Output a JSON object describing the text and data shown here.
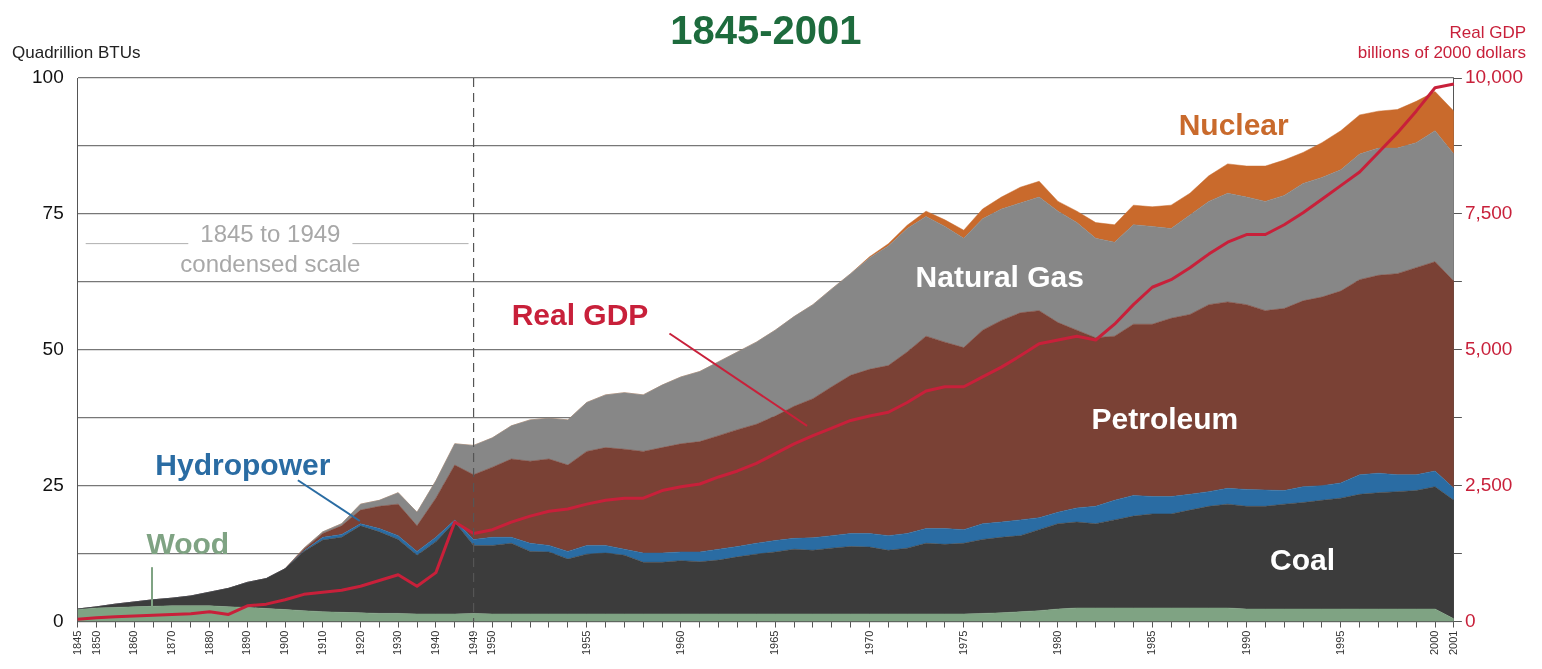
{
  "chart_data": {
    "type": "area",
    "title": "1845-2001",
    "ylabel": "Quadrillion BTUs",
    "y2label": "Real GDP\nbillions of 2000 dollars",
    "stacked": true,
    "grid": "y",
    "legend": false,
    "annotations": [
      "1845 to 1949\ncondensed scale"
    ],
    "categories": [
      "1845",
      "1850",
      null,
      "1860",
      null,
      "1870",
      null,
      "1880",
      null,
      "1890",
      null,
      "1900",
      null,
      "1910",
      null,
      "1920",
      null,
      "1930",
      null,
      "1940",
      null,
      "1949",
      "1950",
      null,
      null,
      null,
      null,
      "1955",
      null,
      null,
      null,
      null,
      "1960",
      null,
      null,
      null,
      null,
      "1965",
      null,
      null,
      null,
      null,
      "1970",
      null,
      null,
      null,
      null,
      "1975",
      null,
      null,
      null,
      null,
      "1980",
      null,
      null,
      null,
      null,
      "1985",
      null,
      null,
      null,
      null,
      "1990",
      null,
      null,
      null,
      null,
      "1995",
      null,
      null,
      null,
      null,
      "2000",
      "2001"
    ],
    "ylim": [
      0,
      100
    ],
    "yticks": [
      0,
      {
        "value": 12.5,
        "label": null
      },
      25,
      {
        "value": 37.5,
        "label": null
      },
      50,
      {
        "value": 62.5,
        "label": null
      },
      75,
      {
        "value": 87.5,
        "label": null
      },
      100
    ],
    "y2lim": [
      0,
      10000
    ],
    "y2ticks": [
      0,
      {
        "value": 1250,
        "label": null
      },
      {
        "value": 2500,
        "label": "2,500"
      },
      {
        "value": 3750,
        "label": null
      },
      {
        "value": 5000,
        "label": "5,000"
      },
      {
        "value": 6250,
        "label": null
      },
      {
        "value": 7500,
        "label": "7,500"
      },
      {
        "value": 8750,
        "label": null
      },
      {
        "value": 10000,
        "label": "10,000"
      }
    ],
    "ref_lines": [
      {
        "axis": "x",
        "value": "1949",
        "label": null,
        "color": "#555555",
        "line_style": "dashed"
      }
    ],
    "series": [
      {
        "name": "Wood",
        "color": "#7fa383",
        "values": [
          2.2,
          2.5,
          2.6,
          2.7,
          2.8,
          2.9,
          2.9,
          2.9,
          2.7,
          2.6,
          2.4,
          2.2,
          2.0,
          1.8,
          1.7,
          1.6,
          1.5,
          1.5,
          1.4,
          1.4,
          1.4,
          1.5,
          1.4,
          1.4,
          1.4,
          1.4,
          1.4,
          1.4,
          1.4,
          1.4,
          1.4,
          1.4,
          1.4,
          1.4,
          1.4,
          1.4,
          1.4,
          1.4,
          1.4,
          1.4,
          1.4,
          1.4,
          1.4,
          1.4,
          1.4,
          1.4,
          1.4,
          1.4,
          1.5,
          1.6,
          1.8,
          2.0,
          2.3,
          2.5,
          2.5,
          2.5,
          2.5,
          2.5,
          2.5,
          2.5,
          2.5,
          2.5,
          2.3,
          2.3,
          2.3,
          2.3,
          2.3,
          2.3,
          2.3,
          2.3,
          2.3,
          2.3,
          2.3,
          0.5
        ]
      },
      {
        "name": "Coal",
        "color": "#3c3c3c",
        "values": [
          0.1,
          0.2,
          0.6,
          0.9,
          1.2,
          1.4,
          1.8,
          2.5,
          3.4,
          4.6,
          5.5,
          7.5,
          10.9,
          13.2,
          13.8,
          16.0,
          15.0,
          13.6,
          10.8,
          13.3,
          16.9,
          12.5,
          12.6,
          13.0,
          11.5,
          11.4,
          10.1,
          11.0,
          11.2,
          10.8,
          9.5,
          9.5,
          9.8,
          9.6,
          9.9,
          10.5,
          11.0,
          11.4,
          11.9,
          11.7,
          12.1,
          12.4,
          12.3,
          11.7,
          12.1,
          13.0,
          12.8,
          13.0,
          13.6,
          13.9,
          14.0,
          14.9,
          15.7,
          15.8,
          15.5,
          16.2,
          16.9,
          17.3,
          17.3,
          18.0,
          18.7,
          19.1,
          18.9,
          18.9,
          19.3,
          19.6,
          20.0,
          20.4,
          21.1,
          21.4,
          21.6,
          21.8,
          22.5,
          21.8
        ]
      },
      {
        "name": "Hydropower",
        "color": "#2a6ca3",
        "values": [
          0,
          0,
          0,
          0,
          0,
          0,
          0,
          0,
          0,
          0,
          0,
          0,
          0.1,
          0.5,
          0.5,
          0.4,
          0.6,
          0.7,
          0.7,
          0.8,
          0.4,
          1.1,
          1.5,
          1.1,
          1.5,
          1.2,
          1.4,
          1.6,
          1.4,
          1.1,
          1.7,
          1.7,
          1.6,
          1.8,
          2.0,
          1.9,
          2.0,
          2.1,
          2.0,
          2.3,
          2.3,
          2.4,
          2.5,
          2.7,
          2.7,
          2.7,
          2.9,
          2.5,
          2.9,
          2.8,
          2.9,
          2.2,
          2.1,
          2.6,
          3.2,
          3.6,
          3.8,
          3.2,
          3.2,
          2.9,
          2.7,
          2.9,
          3.1,
          3.0,
          2.5,
          2.9,
          2.7,
          2.8,
          3.6,
          3.6,
          3.1,
          2.9,
          2.9,
          2.2
        ]
      },
      {
        "name": "Petroleum",
        "color": "#7a4135",
        "values": [
          0,
          0,
          0,
          0,
          0,
          0,
          0,
          0,
          0,
          0,
          0,
          0,
          0.3,
          0.7,
          1.6,
          2.5,
          4.1,
          5.8,
          4.7,
          7.2,
          10.1,
          11.9,
          12.9,
          14.4,
          15.1,
          15.9,
          15.9,
          17.3,
          18.0,
          18.4,
          18.7,
          19.4,
          19.9,
          20.3,
          20.9,
          21.5,
          21.9,
          22.9,
          24.3,
          25.6,
          27.4,
          29.1,
          30.2,
          31.3,
          33.4,
          35.4,
          34.3,
          33.5,
          35.6,
          37.1,
          38.1,
          38.1,
          34.9,
          32.7,
          31.0,
          30.2,
          31.5,
          31.7,
          32.8,
          33.1,
          34.4,
          34.3,
          34.0,
          33.0,
          33.5,
          34.2,
          34.7,
          35.3,
          35.9,
          36.4,
          37.0,
          38.1,
          38.5,
          38.1
        ]
      },
      {
        "name": "Natural Gas",
        "color": "#878787",
        "values": [
          0,
          0,
          0,
          0,
          0,
          0,
          0,
          0,
          0,
          0,
          0,
          0,
          0.2,
          0.3,
          0.4,
          1.1,
          1.1,
          2.1,
          2.5,
          3.2,
          3.9,
          5.4,
          5.4,
          6.1,
          7.6,
          7.5,
          8.3,
          9.0,
          9.7,
          10.4,
          10.4,
          11.5,
          12.3,
          12.9,
          13.6,
          14.3,
          15.1,
          15.8,
          16.5,
          17.3,
          18.0,
          18.7,
          20.5,
          22.0,
          22.7,
          22.0,
          21.3,
          20.1,
          20.5,
          20.5,
          20.2,
          20.9,
          20.5,
          19.8,
          18.3,
          17.3,
          18.3,
          18.0,
          16.5,
          18.3,
          19.0,
          20.0,
          19.8,
          20.1,
          20.8,
          21.6,
          22.0,
          22.3,
          23.1,
          23.4,
          23.1,
          23.0,
          24.1,
          23.4
        ]
      },
      {
        "name": "Nuclear",
        "color": "#c96a2c",
        "values": [
          0,
          0,
          0,
          0,
          0,
          0,
          0,
          0,
          0,
          0,
          0,
          0,
          0,
          0,
          0,
          0,
          0,
          0,
          0,
          0,
          0,
          0,
          0,
          0,
          0,
          0,
          0,
          0,
          0,
          0,
          0,
          0,
          0,
          0,
          0,
          0,
          0,
          0,
          0,
          0,
          0,
          0,
          0.2,
          0.4,
          0.6,
          1.0,
          1.2,
          1.5,
          1.8,
          2.2,
          2.9,
          2.9,
          1.8,
          2.1,
          2.9,
          3.2,
          3.6,
          3.6,
          4.3,
          4.0,
          4.7,
          5.4,
          5.7,
          6.5,
          6.5,
          5.7,
          6.4,
          7.2,
          7.2,
          6.8,
          7.1,
          7.6,
          7.2,
          7.9
        ]
      },
      {
        "name": "Real GDP",
        "type": "line",
        "axis": "y2",
        "color": "#c8203a",
        "values": [
          40,
          70,
          90,
          100,
          115,
          130,
          145,
          180,
          130,
          290,
          320,
          400,
          500,
          540,
          575,
          650,
          755,
          860,
          650,
          900,
          1830,
          1620,
          1690,
          1830,
          1940,
          2030,
          2070,
          2160,
          2230,
          2270,
          2270,
          2410,
          2480,
          2530,
          2660,
          2770,
          2910,
          3090,
          3270,
          3420,
          3560,
          3700,
          3780,
          3850,
          4030,
          4240,
          4320,
          4320,
          4500,
          4680,
          4890,
          5110,
          5180,
          5250,
          5180,
          5470,
          5830,
          6150,
          6290,
          6510,
          6760,
          6980,
          7120,
          7120,
          7300,
          7520,
          7770,
          8020,
          8270,
          8630,
          8990,
          9390,
          9820,
          9890
        ]
      }
    ]
  }
}
